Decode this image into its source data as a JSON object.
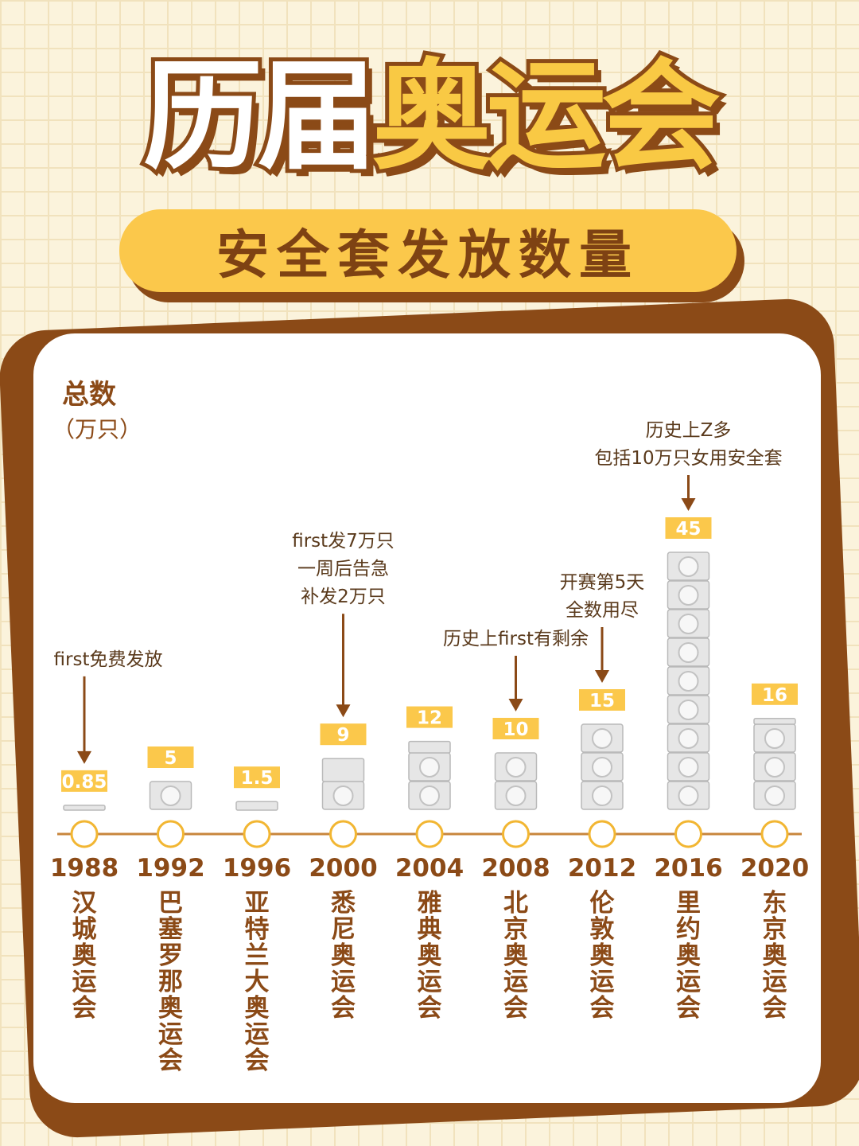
{
  "title": {
    "part1": "历届",
    "part2": "奥运会"
  },
  "subtitle": "安全套发放数量",
  "chart_data": {
    "type": "bar",
    "ylabel": "总数",
    "yunit": "（万只）",
    "categories": [
      "1988",
      "1992",
      "1996",
      "2000",
      "2004",
      "2008",
      "2012",
      "2016",
      "2020"
    ],
    "cities": [
      "汉城奥运会",
      "巴塞罗那奥运会",
      "亚特兰大奥运会",
      "悉尼奥运会",
      "雅典奥运会",
      "北京奥运会",
      "伦敦奥运会",
      "里约奥运会",
      "东京奥运会"
    ],
    "values": [
      0.85,
      5,
      1.5,
      9,
      12,
      10,
      15,
      45,
      16
    ],
    "value_labels": [
      "0.85",
      "5",
      "1.5",
      "9",
      "12",
      "10",
      "15",
      "45",
      "16"
    ],
    "annotations": [
      {
        "index": 0,
        "lines": [
          "first免费发放"
        ]
      },
      {
        "index": 3,
        "lines": [
          "first发7万只",
          "一周后告急",
          "补发2万只"
        ]
      },
      {
        "index": 5,
        "lines": [
          "历史上first有剩余"
        ]
      },
      {
        "index": 6,
        "lines": [
          "开赛第5天",
          "全数用尽"
        ]
      },
      {
        "index": 7,
        "lines": [
          "历史上Z多",
          "包括10万只女用安全套"
        ]
      }
    ],
    "colors": {
      "brown": "#8b4a17",
      "yellow": "#fbc84b",
      "packet": "#e6e6e6"
    }
  }
}
